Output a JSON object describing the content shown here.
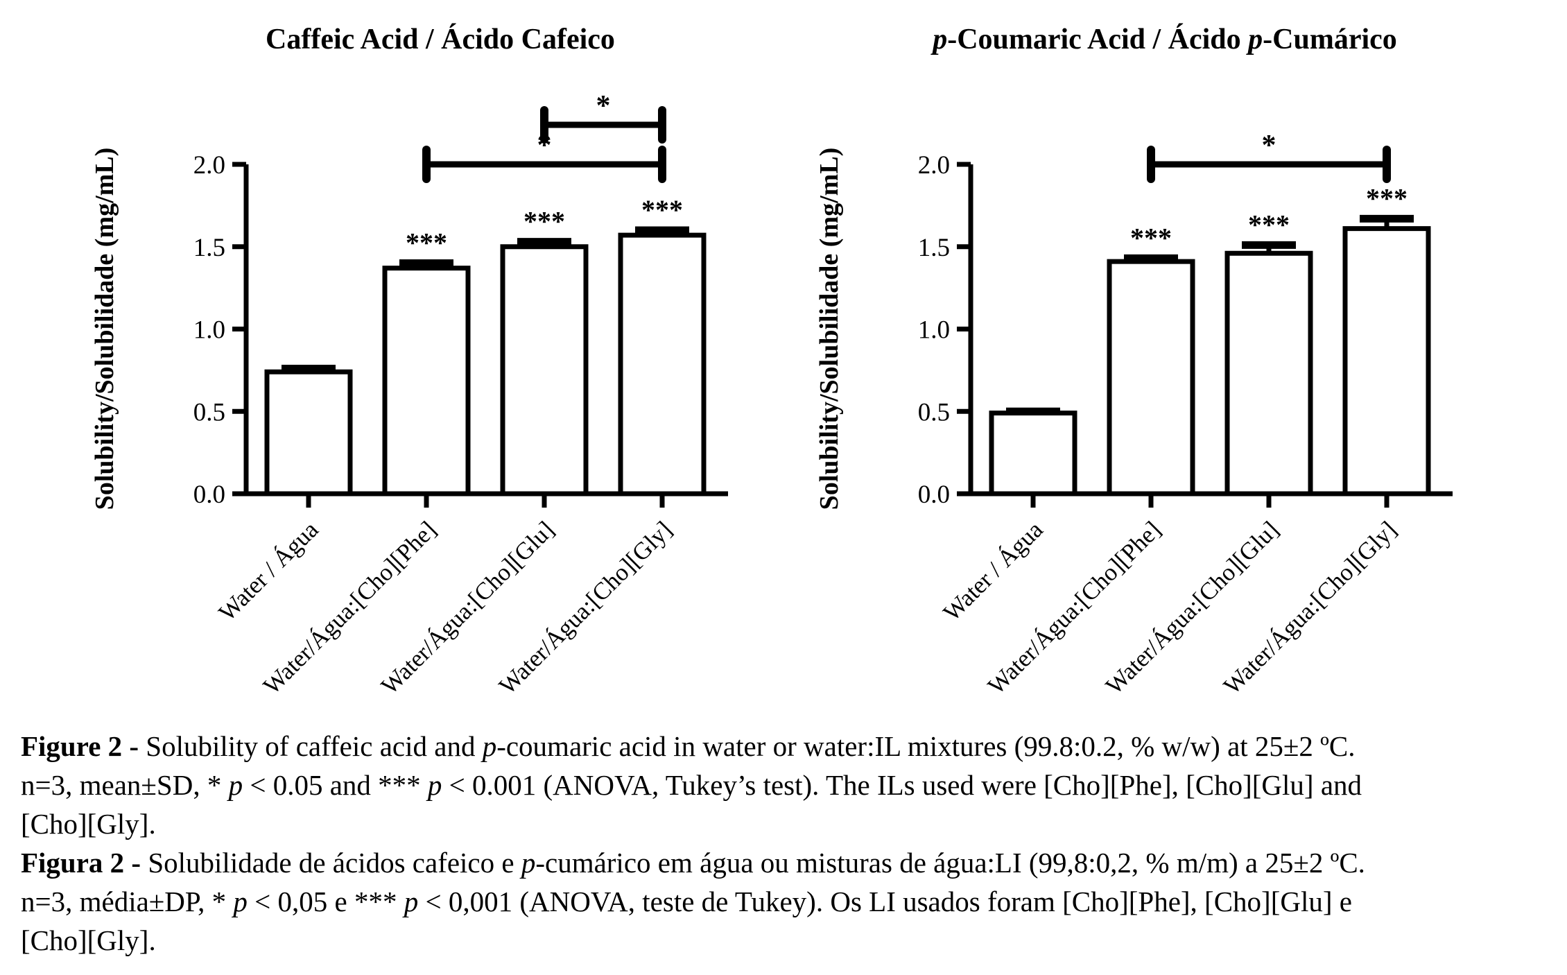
{
  "page": {
    "background": "#ffffff",
    "ink": "#000000"
  },
  "chart_data": [
    {
      "type": "bar",
      "title_plain": "Caffeic Acid / Ácido Cafeico",
      "title_runs": [
        {
          "text": "Caffeic Acid / Ácido Cafeico",
          "italic": false
        }
      ],
      "ylabel": "Solubility/Solubilidade (mg/mL)",
      "xlabel": "",
      "ylim": [
        0,
        2.0
      ],
      "yticks": [
        "0.0",
        "0.5",
        "1.0",
        "1.5",
        "2.0"
      ],
      "grid": false,
      "legend": null,
      "bar_fill": "#ffffff",
      "bar_stroke": "#000000",
      "categories": [
        "Water / Água",
        "Water/Água:[Cho][Phe]",
        "Water/Água:[Cho][Glu]",
        "Water/Água:[Cho][Gly]"
      ],
      "values": [
        0.74,
        1.37,
        1.5,
        1.57
      ],
      "error_cap_values": [
        0.76,
        1.4,
        1.53,
        1.6
      ],
      "error_note": "mean±SD, n=3",
      "bar_significance": [
        "",
        "***",
        "***",
        "***"
      ],
      "comparison_brackets": [
        {
          "from_category": 1,
          "to_category": 3,
          "label": "*",
          "y_value": 2.0
        },
        {
          "from_category": 2,
          "to_category": 3,
          "label": "*",
          "y_value": 2.24
        }
      ]
    },
    {
      "type": "bar",
      "title_plain": "p-Coumaric Acid / Ácido p-Cumárico",
      "title_runs": [
        {
          "text": "p",
          "italic": true
        },
        {
          "text": "-Coumaric Acid / Ácido ",
          "italic": false
        },
        {
          "text": "p",
          "italic": true
        },
        {
          "text": "-Cumárico",
          "italic": false
        }
      ],
      "ylabel": "Solubility/Solubilidade (mg/mL)",
      "xlabel": "",
      "ylim": [
        0,
        2.0
      ],
      "yticks": [
        "0.0",
        "0.5",
        "1.0",
        "1.5",
        "2.0"
      ],
      "grid": false,
      "legend": null,
      "bar_fill": "#ffffff",
      "bar_stroke": "#000000",
      "categories": [
        "Water / Água",
        "Water/Água:[Cho][Phe]",
        "Water/Água:[Cho][Glu]",
        "Water/Água:[Cho][Gly]"
      ],
      "values": [
        0.49,
        1.41,
        1.46,
        1.61
      ],
      "error_cap_values": [
        0.5,
        1.43,
        1.51,
        1.67
      ],
      "error_note": "mean±SD, n=3",
      "bar_significance": [
        "",
        "***",
        "***",
        "***"
      ],
      "comparison_brackets": [
        {
          "from_category": 1,
          "to_category": 3,
          "label": "*",
          "y_value": 2.0
        }
      ]
    }
  ],
  "caption": {
    "lines": [
      [
        {
          "text": "Figure 2 - ",
          "bold": true
        },
        {
          "text": "Solubility of caffeic acid and "
        },
        {
          "text": "p",
          "italic": true
        },
        {
          "text": "-coumaric acid in water or water:IL mixtures (99.8:0.2, % w/w) at 25±2 ºC."
        }
      ],
      [
        {
          "text": "n=3, mean±SD, * "
        },
        {
          "text": "p",
          "italic": true
        },
        {
          "text": " < 0.05 and *** "
        },
        {
          "text": "p",
          "italic": true
        },
        {
          "text": " < 0.001 (ANOVA, Tukey’s test). The ILs used were [Cho][Phe], [Cho][Glu] and"
        }
      ],
      [
        {
          "text": "[Cho][Gly]."
        }
      ],
      [
        {
          "text": "Figura 2 - ",
          "bold": true
        },
        {
          "text": "Solubilidade de ácidos cafeico e "
        },
        {
          "text": "p",
          "italic": true
        },
        {
          "text": "-cumárico em água ou misturas de água:LI (99,8:0,2, % m/m) a 25±2 ºC."
        }
      ],
      [
        {
          "text": "n=3, média±DP, * "
        },
        {
          "text": "p",
          "italic": true
        },
        {
          "text": " < 0,05 e *** "
        },
        {
          "text": "p",
          "italic": true
        },
        {
          "text": " < 0,001 (ANOVA, teste de Tukey). Os LI usados foram [Cho][Phe], [Cho][Glu] e"
        }
      ],
      [
        {
          "text": "[Cho][Gly]."
        }
      ]
    ]
  }
}
